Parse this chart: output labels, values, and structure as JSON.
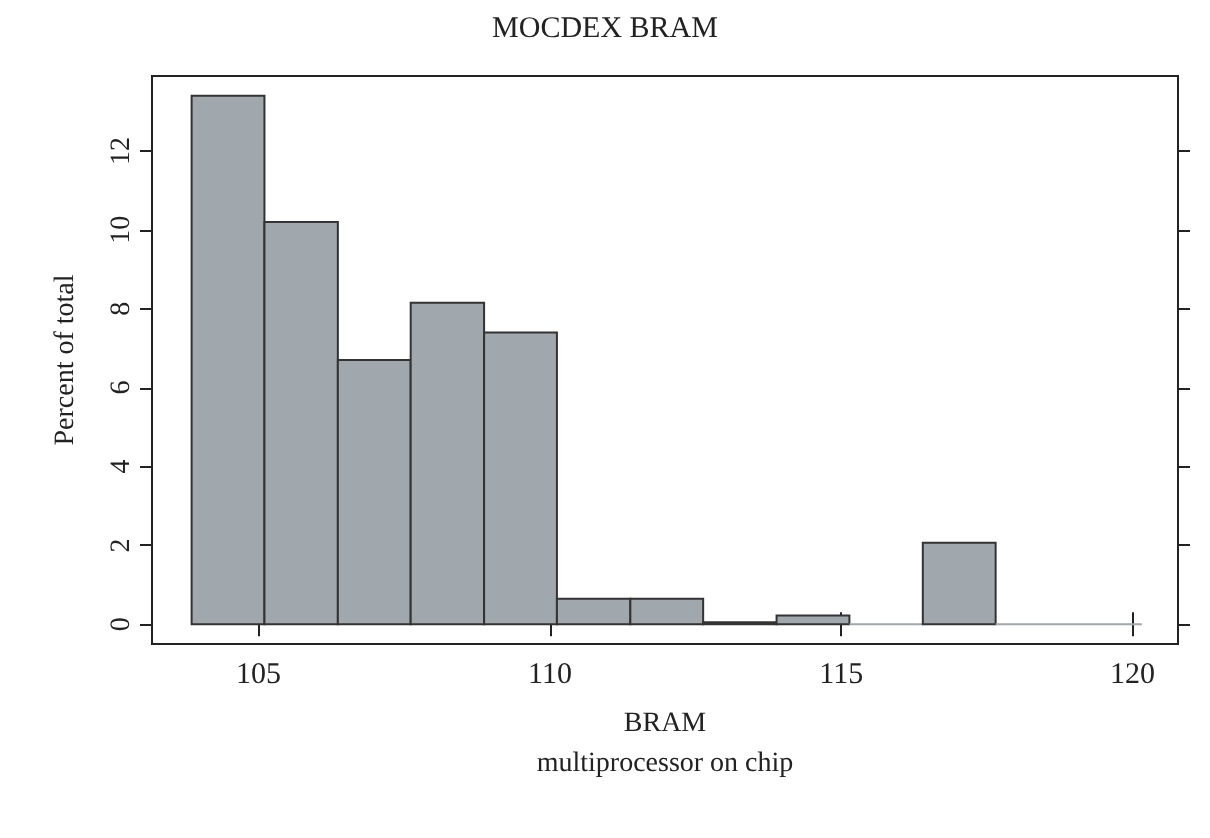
{
  "chart_data": {
    "type": "histogram",
    "title": "MOCDEX BRAM",
    "xlabel": "BRAM\nmultiprocessor on chip",
    "ylabel": "Percent of total",
    "bins": [
      103.85,
      105.1,
      106.36,
      107.61,
      108.87,
      110.12,
      111.38,
      112.63,
      113.89,
      115.14,
      116.4,
      117.65,
      118.91,
      120.16
    ],
    "values": [
      13.4,
      10.2,
      6.7,
      8.15,
      7.4,
      0.65,
      0.65,
      0.05,
      0.22,
      0,
      2.07,
      0,
      0
    ],
    "color": "#a0a7ad",
    "xlim": [
      103.17,
      120.78
    ],
    "xticks": [
      105,
      110,
      115,
      120
    ],
    "ylim": [
      -0.5,
      13.9
    ],
    "yticks": [
      0,
      2,
      4,
      6,
      8,
      10,
      12
    ],
    "grid": false
  }
}
